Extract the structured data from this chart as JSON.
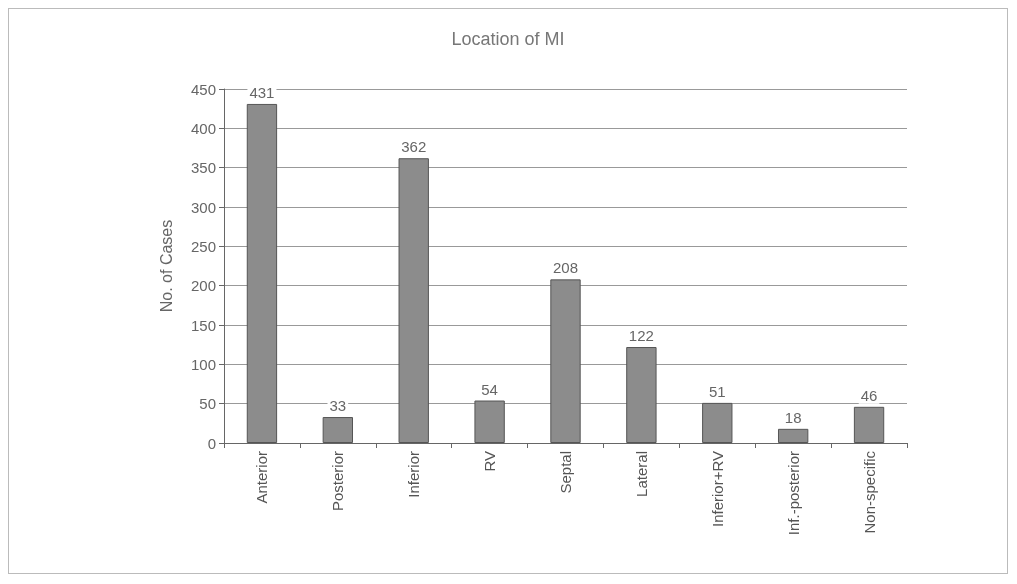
{
  "chart_data": {
    "type": "bar",
    "title": "Location of MI",
    "ylabel": "No. of Cases",
    "categories": [
      "Anterior",
      "Posterior",
      "Inferior",
      "RV",
      "Septal",
      "Lateral",
      "Inferior+RV",
      "Inf.-posterior",
      "Non-specific"
    ],
    "values": [
      431,
      33,
      362,
      54,
      208,
      122,
      51,
      18,
      46
    ],
    "color": "#8c8c8c",
    "ylim": [
      0,
      450
    ],
    "yticks": [
      0,
      50,
      100,
      150,
      200,
      250,
      300,
      350,
      400,
      450
    ],
    "grid": "y",
    "data_labels": true
  }
}
